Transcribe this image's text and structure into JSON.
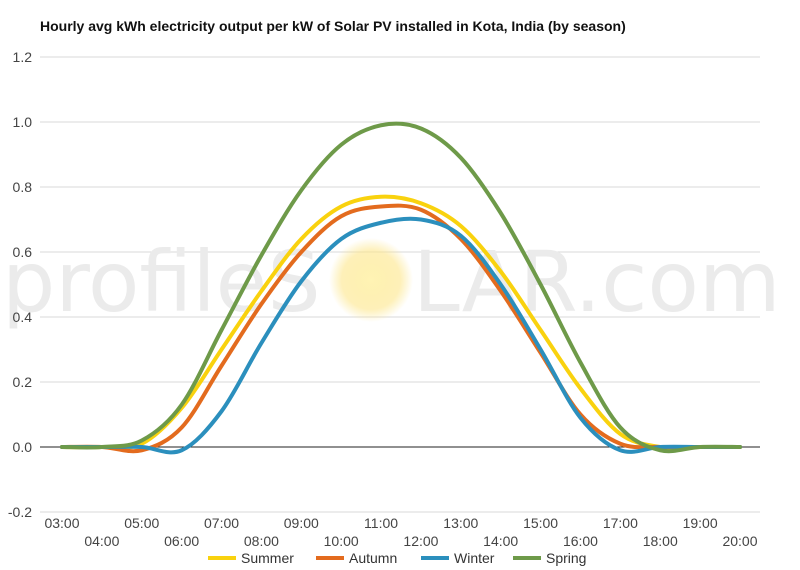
{
  "chart_data": {
    "type": "line",
    "title": "Hourly avg kWh electricity output per kW of Solar PV installed in Kota, India (by season)",
    "xlabel": "",
    "ylabel": "",
    "ylim": [
      -0.2,
      1.2
    ],
    "yticks": [
      "-0.2",
      "0.0",
      "0.2",
      "0.4",
      "0.6",
      "0.8",
      "1.0",
      "1.2"
    ],
    "x": [
      "03:00",
      "04:00",
      "05:00",
      "06:00",
      "07:00",
      "08:00",
      "09:00",
      "10:00",
      "11:00",
      "12:00",
      "13:00",
      "14:00",
      "15:00",
      "16:00",
      "17:00",
      "18:00",
      "19:00",
      "20:00"
    ],
    "grid": true,
    "legend_position": "bottom",
    "watermark": {
      "left": "profileS",
      "right": "LAR.com"
    },
    "series": [
      {
        "name": "Summer",
        "color": "#f9d20e",
        "values": [
          0.0,
          0.0,
          0.01,
          0.12,
          0.3,
          0.48,
          0.64,
          0.74,
          0.77,
          0.75,
          0.68,
          0.54,
          0.36,
          0.18,
          0.04,
          0.0,
          0.0,
          0.0
        ]
      },
      {
        "name": "Autumn",
        "color": "#e36b1e",
        "values": [
          0.0,
          0.0,
          -0.01,
          0.06,
          0.25,
          0.44,
          0.6,
          0.71,
          0.74,
          0.73,
          0.64,
          0.48,
          0.29,
          0.1,
          0.01,
          0.0,
          0.0,
          0.0
        ]
      },
      {
        "name": "Winter",
        "color": "#2b8fbd",
        "values": [
          0.0,
          0.0,
          0.0,
          -0.01,
          0.11,
          0.32,
          0.51,
          0.64,
          0.69,
          0.7,
          0.65,
          0.5,
          0.3,
          0.09,
          -0.01,
          0.0,
          0.0,
          0.0
        ]
      },
      {
        "name": "Spring",
        "color": "#6e9a49",
        "values": [
          0.0,
          0.0,
          0.02,
          0.13,
          0.36,
          0.59,
          0.79,
          0.93,
          0.99,
          0.98,
          0.89,
          0.72,
          0.5,
          0.26,
          0.06,
          -0.01,
          0.0,
          0.0
        ]
      }
    ]
  }
}
